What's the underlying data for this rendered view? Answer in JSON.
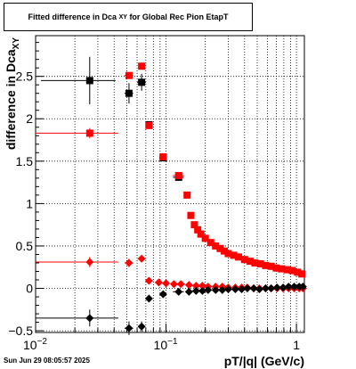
{
  "chart_data": {
    "type": "scatter",
    "title": "Fitted difference in Dca",
    "title_subscript": "XY",
    "title_suffix": "for Global Rec Pion EtapT",
    "xlabel": "pT/|q| (GeV/c)",
    "ylabel_main": "difference in Dca",
    "ylabel_sub": "XY",
    "x_scale": "log",
    "xlim": [
      0.01,
      1.15
    ],
    "ylim": [
      -0.52,
      2.98
    ],
    "grid": true,
    "x_tick_labels": [
      {
        "value": 0.01,
        "base": "10",
        "exp": "−2"
      },
      {
        "value": 0.1,
        "base": "10",
        "exp": "−1"
      },
      {
        "value": 1,
        "base": "1",
        "exp": ""
      }
    ],
    "y_ticks": [
      -0.5,
      0,
      0.5,
      1,
      1.5,
      2,
      2.5
    ],
    "y_tick_labels": [
      "−0.5",
      "0",
      "0.5",
      "1",
      "1.5",
      "2",
      "2.5"
    ],
    "series": [
      {
        "marker": "square",
        "color": "#000000",
        "points": [
          {
            "x": 0.026,
            "y": 2.45,
            "xerr": 0.015,
            "yerr": 0.28
          },
          {
            "x": 0.052,
            "y": 2.3,
            "xerr": 0.004,
            "yerr": 0.12
          },
          {
            "x": 0.065,
            "y": 2.43,
            "xerr": 0.005,
            "yerr": 0.1
          },
          {
            "x": 0.074,
            "y": 1.93,
            "xerr": 0.003,
            "yerr": 0.03
          },
          {
            "x": 0.095,
            "y": 1.54,
            "xerr": 0.006,
            "yerr": 0.02
          },
          {
            "x": 0.125,
            "y": 1.31,
            "xerr": 0.012,
            "yerr": 0.02
          }
        ]
      },
      {
        "marker": "square",
        "color": "#ff0000",
        "points": [
          {
            "x": 0.026,
            "y": 1.83,
            "xerr": 0.017,
            "yerr": 0.06
          },
          {
            "x": 0.052,
            "y": 2.51,
            "xerr": 0.004,
            "yerr": 0.04
          },
          {
            "x": 0.065,
            "y": 2.62,
            "xerr": 0.004,
            "yerr": 0.04
          },
          {
            "x": 0.074,
            "y": 1.92,
            "xerr": 0.003,
            "yerr": 0.03
          },
          {
            "x": 0.095,
            "y": 1.55,
            "xerr": 0.006,
            "yerr": 0.02
          },
          {
            "x": 0.125,
            "y": 1.33,
            "xerr": 0.012,
            "yerr": 0.02
          },
          {
            "x": 0.145,
            "y": 1.1
          },
          {
            "x": 0.155,
            "y": 0.86
          },
          {
            "x": 0.165,
            "y": 0.75
          },
          {
            "x": 0.175,
            "y": 0.69
          },
          {
            "x": 0.185,
            "y": 0.64
          },
          {
            "x": 0.2,
            "y": 0.59
          },
          {
            "x": 0.22,
            "y": 0.54
          },
          {
            "x": 0.24,
            "y": 0.5
          },
          {
            "x": 0.26,
            "y": 0.47
          },
          {
            "x": 0.28,
            "y": 0.44
          },
          {
            "x": 0.3,
            "y": 0.41
          },
          {
            "x": 0.33,
            "y": 0.39
          },
          {
            "x": 0.36,
            "y": 0.37
          },
          {
            "x": 0.4,
            "y": 0.34
          },
          {
            "x": 0.44,
            "y": 0.32
          },
          {
            "x": 0.48,
            "y": 0.3
          },
          {
            "x": 0.53,
            "y": 0.29
          },
          {
            "x": 0.58,
            "y": 0.27
          },
          {
            "x": 0.64,
            "y": 0.26
          },
          {
            "x": 0.7,
            "y": 0.24
          },
          {
            "x": 0.77,
            "y": 0.23
          },
          {
            "x": 0.85,
            "y": 0.22
          },
          {
            "x": 0.93,
            "y": 0.21
          },
          {
            "x": 1.02,
            "y": 0.19
          },
          {
            "x": 1.1,
            "y": 0.17
          }
        ]
      },
      {
        "marker": "diamond",
        "color": "#ff0000",
        "points": [
          {
            "x": 0.026,
            "y": 0.31,
            "xerr": 0.017,
            "yerr": 0.06
          },
          {
            "x": 0.052,
            "y": 0.3,
            "xerr": 0.004,
            "yerr": 0.05
          },
          {
            "x": 0.065,
            "y": 0.35,
            "xerr": 0.004,
            "yerr": 0.04
          },
          {
            "x": 0.074,
            "y": 0.09
          },
          {
            "x": 0.088,
            "y": 0.07
          },
          {
            "x": 0.1,
            "y": 0.06
          },
          {
            "x": 0.115,
            "y": 0.05
          },
          {
            "x": 0.13,
            "y": 0.05
          },
          {
            "x": 0.15,
            "y": 0.04
          },
          {
            "x": 0.17,
            "y": 0.03
          },
          {
            "x": 0.19,
            "y": 0.03
          },
          {
            "x": 0.21,
            "y": 0.02
          },
          {
            "x": 0.24,
            "y": 0.02
          },
          {
            "x": 0.27,
            "y": 0.02
          },
          {
            "x": 0.3,
            "y": 0.01
          },
          {
            "x": 0.34,
            "y": 0.01
          },
          {
            "x": 0.38,
            "y": 0.01
          },
          {
            "x": 0.42,
            "y": 0.01
          },
          {
            "x": 0.47,
            "y": 0.0
          },
          {
            "x": 0.52,
            "y": 0.0
          },
          {
            "x": 0.58,
            "y": 0.0
          },
          {
            "x": 0.64,
            "y": 0.0
          },
          {
            "x": 0.71,
            "y": 0.0
          },
          {
            "x": 0.79,
            "y": 0.0
          },
          {
            "x": 0.87,
            "y": 0.0
          },
          {
            "x": 0.96,
            "y": 0.0
          },
          {
            "x": 1.05,
            "y": 0.0
          },
          {
            "x": 1.12,
            "y": 0.0
          }
        ]
      },
      {
        "marker": "diamond",
        "color": "#000000",
        "points": [
          {
            "x": 0.026,
            "y": -0.35,
            "xerr": 0.017,
            "yerr": 0.1
          },
          {
            "x": 0.052,
            "y": -0.47,
            "xerr": 0.004,
            "yerr": 0.08
          },
          {
            "x": 0.065,
            "y": -0.45,
            "xerr": 0.004,
            "yerr": 0.06
          },
          {
            "x": 0.074,
            "y": -0.12,
            "xerr": 0.003,
            "yerr": 0.03
          },
          {
            "x": 0.095,
            "y": -0.07,
            "xerr": 0.006,
            "yerr": 0.02
          },
          {
            "x": 0.125,
            "y": -0.04,
            "xerr": 0.012,
            "yerr": 0.02
          },
          {
            "x": 0.15,
            "y": -0.04
          },
          {
            "x": 0.17,
            "y": -0.03
          },
          {
            "x": 0.19,
            "y": -0.03
          },
          {
            "x": 0.21,
            "y": -0.02
          },
          {
            "x": 0.24,
            "y": -0.02
          },
          {
            "x": 0.27,
            "y": -0.02
          },
          {
            "x": 0.3,
            "y": -0.01
          },
          {
            "x": 0.34,
            "y": -0.01
          },
          {
            "x": 0.38,
            "y": -0.01
          },
          {
            "x": 0.42,
            "y": 0.0
          },
          {
            "x": 0.47,
            "y": 0.0
          },
          {
            "x": 0.52,
            "y": -0.01
          },
          {
            "x": 0.58,
            "y": 0.0
          },
          {
            "x": 0.64,
            "y": 0.0
          },
          {
            "x": 0.71,
            "y": 0.01
          },
          {
            "x": 0.79,
            "y": 0.01
          },
          {
            "x": 0.87,
            "y": 0.02
          },
          {
            "x": 0.96,
            "y": 0.02
          },
          {
            "x": 1.05,
            "y": 0.02
          },
          {
            "x": 1.12,
            "y": 0.02
          }
        ]
      }
    ]
  },
  "footer": {
    "date_stamp": "Sun Jun 29 08:05:57 2025"
  }
}
